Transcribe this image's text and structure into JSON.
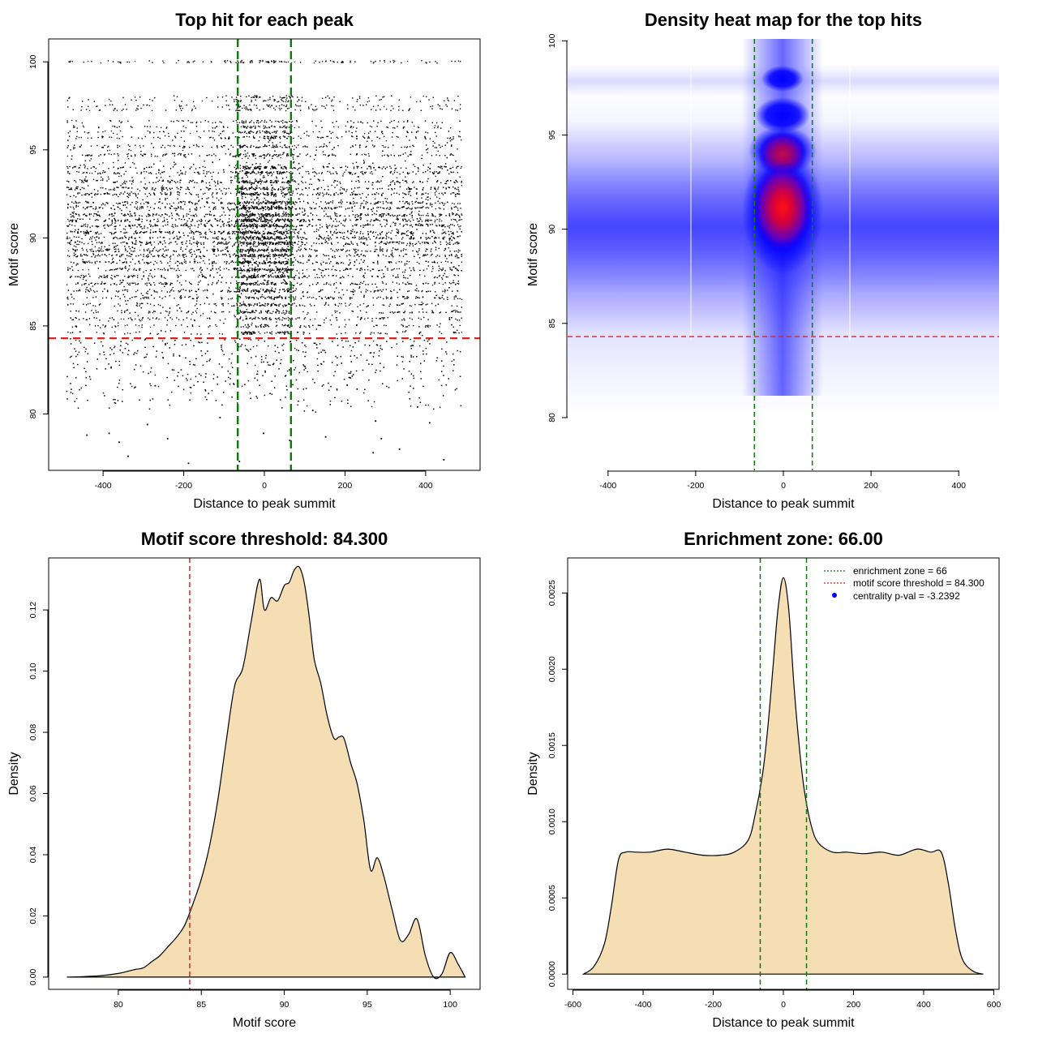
{
  "colors": {
    "threshold_line": "#dd2222",
    "zone_line": "#117711",
    "density_fill": "#f5deb3",
    "points": "#000000",
    "heat_low": "#ffffff",
    "heat_mid": "#0000ff",
    "heat_high": "#ff0000",
    "legend_point": "#0000ff"
  },
  "chart_data": [
    {
      "type": "scatter",
      "title": "Top hit for each peak",
      "xlabel": "Distance to peak summit",
      "ylabel": "Motif score",
      "xlim": [
        -535,
        535
      ],
      "ylim": [
        76.8,
        101.3
      ],
      "xticks": [
        -400,
        -200,
        0,
        200,
        400
      ],
      "yticks": [
        80,
        85,
        90,
        95,
        100
      ],
      "hlines": [
        {
          "y": 84.3,
          "color": "red",
          "style": "dashed"
        }
      ],
      "vlines": [
        {
          "x": -66,
          "color": "green",
          "style": "dashed"
        },
        {
          "x": 66,
          "color": "green",
          "style": "dashed"
        }
      ],
      "x_range_of_points": [
        -490,
        490
      ],
      "y_range_of_points": [
        77.2,
        100
      ],
      "score_levels_with_dense_rows": [
        100,
        98,
        97.8,
        97.5,
        97.3,
        96.6,
        96.3,
        96,
        95.7,
        95.2,
        94.7,
        94,
        93.7,
        93.2,
        92.8,
        92.5,
        92,
        91.7,
        91.3,
        91,
        90.7,
        90.3,
        90,
        89.7,
        89.3,
        89,
        88.6,
        88.2,
        87.8,
        87.4,
        87,
        86.6,
        86.2,
        85.8,
        85.4,
        85,
        84.6
      ],
      "points_sparse_below_threshold": [
        {
          "x": -440,
          "y": 78.8
        },
        {
          "x": -385,
          "y": 78.9
        },
        {
          "x": -360,
          "y": 78.4
        },
        {
          "x": -338,
          "y": 77.6
        },
        {
          "x": -240,
          "y": 78.6
        },
        {
          "x": -188,
          "y": 77.2
        },
        {
          "x": -62,
          "y": 77.3
        },
        {
          "x": -2,
          "y": 78.9
        },
        {
          "x": 63,
          "y": 78.5
        },
        {
          "x": 152,
          "y": 78.7
        },
        {
          "x": 270,
          "y": 77.8
        },
        {
          "x": 276,
          "y": 79.6
        },
        {
          "x": 290,
          "y": 78.6
        },
        {
          "x": 335,
          "y": 78.0
        },
        {
          "x": 410,
          "y": 79.5
        },
        {
          "x": 445,
          "y": 77.4
        },
        {
          "x": -290,
          "y": 79.4
        },
        {
          "x": -110,
          "y": 79.8
        },
        {
          "x": 120,
          "y": 80.2
        },
        {
          "x": 380,
          "y": 80.4
        }
      ]
    },
    {
      "type": "heatmap",
      "title": "Density heat map for the top hits",
      "xlabel": "Distance to peak summit",
      "ylabel": "Motif score",
      "xlim": [
        -492,
        492
      ],
      "ylim": [
        77.2,
        100.1
      ],
      "xticks": [
        -400,
        -200,
        0,
        200,
        400
      ],
      "yticks": [
        80,
        85,
        90,
        95,
        100
      ],
      "hlines": [
        {
          "y": 84.3,
          "color": "red",
          "style": "dashed"
        }
      ],
      "vlines": [
        {
          "x": -66,
          "color": "green",
          "style": "dashed"
        },
        {
          "x": 66,
          "color": "green",
          "style": "dashed"
        }
      ],
      "hotspot": {
        "x": 0,
        "y": 91.0
      },
      "color_scale": [
        "white",
        "blue",
        "red"
      ]
    },
    {
      "type": "area",
      "title": "Motif score threshold: 84.300",
      "xlabel": "Motif score",
      "ylabel": "Density",
      "xlim": [
        75.8,
        101.8
      ],
      "ylim": [
        -0.004,
        0.137
      ],
      "xticks": [
        80,
        85,
        90,
        95,
        100
      ],
      "yticks": [
        0.0,
        0.02,
        0.04,
        0.06,
        0.08,
        0.1,
        0.12
      ],
      "ytick_labels": [
        "0.00",
        "0.02",
        "0.04",
        "0.06",
        "0.08",
        "0.10",
        "0.12"
      ],
      "vlines": [
        {
          "x": 84.3,
          "color": "red",
          "style": "dashed"
        }
      ],
      "x": [
        76.9,
        78,
        79,
        80,
        80.5,
        81,
        81.5,
        82,
        82.5,
        83,
        83.5,
        84,
        84.5,
        85,
        85.5,
        86,
        86.5,
        87,
        87.5,
        88,
        88.5,
        88.8,
        89.2,
        89.6,
        90,
        90.3,
        90.6,
        90.9,
        91.2,
        91.5,
        91.8,
        92.2,
        92.6,
        93,
        93.3,
        93.6,
        94,
        94.4,
        94.8,
        95.2,
        95.6,
        96,
        96.5,
        97,
        97.5,
        98,
        98.5,
        99,
        99.5,
        100,
        100.5,
        100.9
      ],
      "y": [
        0.0,
        0.0002,
        0.0005,
        0.0012,
        0.0018,
        0.0025,
        0.003,
        0.005,
        0.007,
        0.01,
        0.013,
        0.017,
        0.024,
        0.032,
        0.043,
        0.058,
        0.077,
        0.095,
        0.101,
        0.116,
        0.13,
        0.12,
        0.124,
        0.123,
        0.128,
        0.129,
        0.133,
        0.134,
        0.129,
        0.118,
        0.104,
        0.096,
        0.085,
        0.078,
        0.0785,
        0.078,
        0.07,
        0.063,
        0.051,
        0.035,
        0.039,
        0.033,
        0.022,
        0.012,
        0.014,
        0.019,
        0.007,
        0.0,
        0.001,
        0.008,
        0.004,
        0.0
      ]
    },
    {
      "type": "area",
      "title": "Enrichment zone: 66.00",
      "xlabel": "Distance to peak summit",
      "ylabel": "Density",
      "xlim": [
        -615,
        615
      ],
      "ylim": [
        -0.0001,
        0.00273
      ],
      "xticks": [
        -600,
        -400,
        -200,
        0,
        200,
        400,
        600
      ],
      "yticks": [
        0.0,
        0.0005,
        0.001,
        0.0015,
        0.002,
        0.0025
      ],
      "ytick_labels": [
        "0.0000",
        "0.0005",
        "0.0010",
        "0.0015",
        "0.0020",
        "0.0025"
      ],
      "vlines": [
        {
          "x": -66,
          "color": "green",
          "style": "dashed"
        },
        {
          "x": 66,
          "color": "green",
          "style": "dashed"
        }
      ],
      "legend": [
        {
          "label": "enrichment zone = 66",
          "style": "dotted",
          "color": "green"
        },
        {
          "label": "motif score threshold = 84.300",
          "style": "dotted",
          "color": "red"
        },
        {
          "label": "centrality p-val = -3.2392",
          "style": "point",
          "color": "blue"
        }
      ],
      "legend_position": "top-right",
      "x": [
        -570,
        -540,
        -510,
        -490,
        -470,
        -450,
        -420,
        -380,
        -330,
        -280,
        -230,
        -180,
        -140,
        -100,
        -80,
        -60,
        -45,
        -30,
        -15,
        0,
        15,
        30,
        45,
        60,
        80,
        100,
        140,
        180,
        230,
        280,
        330,
        380,
        420,
        450,
        470,
        490,
        510,
        540,
        570
      ],
      "y": [
        0.0,
        5e-05,
        0.0002,
        0.00045,
        0.00075,
        0.0008,
        0.0008,
        0.0008,
        0.00082,
        0.0008,
        0.00078,
        0.00078,
        0.0008,
        0.00088,
        0.00105,
        0.0013,
        0.0016,
        0.002,
        0.0024,
        0.0026,
        0.0024,
        0.0019,
        0.0015,
        0.0012,
        0.00097,
        0.00086,
        0.0008,
        0.0008,
        0.00079,
        0.0008,
        0.00078,
        0.00082,
        0.0008,
        0.0008,
        0.0006,
        0.0003,
        0.0001,
        2e-05,
        0.0
      ]
    }
  ]
}
